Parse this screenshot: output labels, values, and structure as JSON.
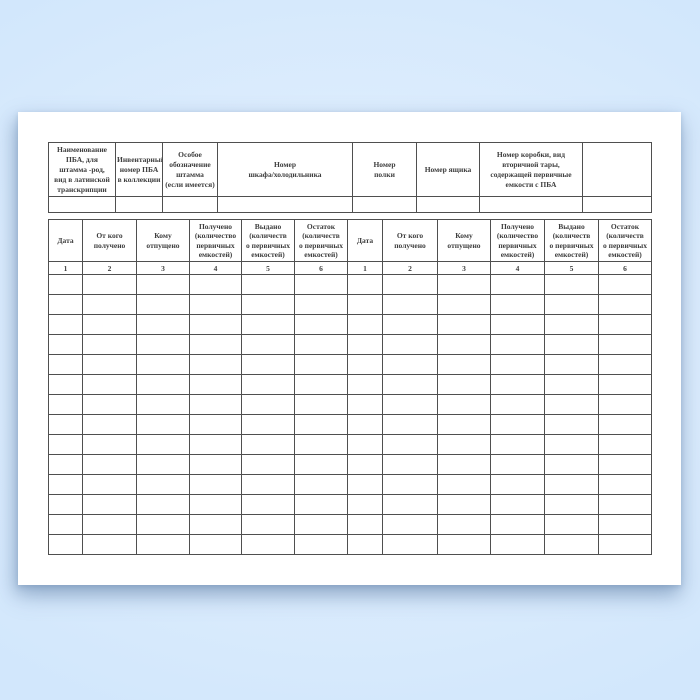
{
  "colors": {
    "bg-edge": "#d2e7fc",
    "bg-center": "#e7f2fe",
    "page": "#ffffff",
    "border": "#4f4f4f",
    "text": "#3d3d3d"
  },
  "top_table": {
    "headers": [
      "Наименование\nПБА, для\nштамма -род,\nвид в латинской\nтранскрипции",
      "Инвентарный\nномер ПБА\nв коллекции",
      "Особое\nобозначение\nштамма\n(если имеется)",
      "Номер\nшкафа/холодильника",
      "Номер\nполки",
      "Номер ящика",
      "Номер коробки, вид\nвторичной тары,\nсодержащей первичные\nемкости с ПБА",
      ""
    ]
  },
  "bottom_table": {
    "columns": [
      "Дата",
      "От кого\nполучено",
      "Кому\nотпущено",
      "Получено\n(количество\nпервичных\nемкостей)",
      "Выдано\n(количеств\nо первичных\nемкостей)",
      "Остаток\n(количеств\nо первичных\nемкостей)"
    ],
    "numbers": [
      "1",
      "2",
      "3",
      "4",
      "5",
      "6"
    ],
    "empty_rows": 14
  }
}
